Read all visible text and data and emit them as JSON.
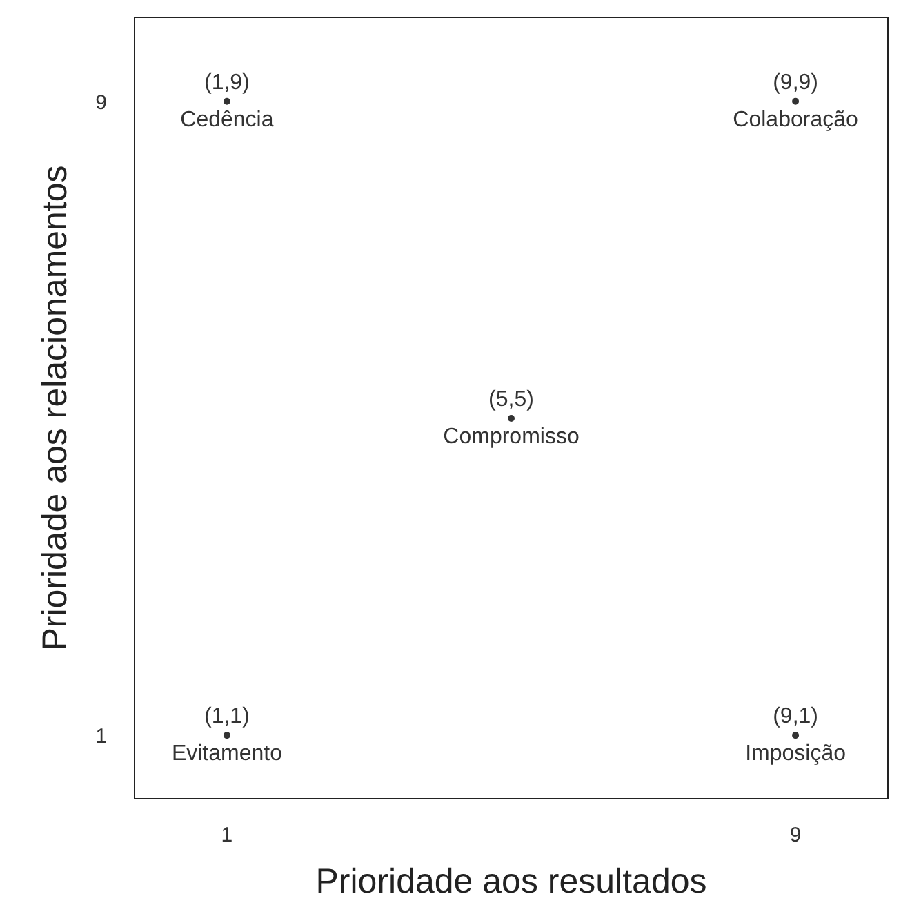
{
  "chart_data": {
    "type": "scatter",
    "xlabel": "Prioridade aos resultados",
    "ylabel": "Prioridade aos relacionamentos",
    "color": "#333333",
    "x": [
      1,
      9,
      5,
      1,
      9
    ],
    "values": [
      9,
      9,
      5,
      1,
      1
    ],
    "marker": "circle",
    "annotations": [
      "(1,9)\nCedência",
      "(9,9)\nColaboração",
      "(5,5)\nCompromisso",
      "(1,1)\nEvitamento",
      "(9,1)\nImposição"
    ],
    "xlim": [
      -0.3,
      10.3
    ],
    "ylim": [
      0.2,
      10.06
    ],
    "xticks": [
      1,
      9
    ],
    "yticks": [
      1,
      9
    ],
    "grid": false
  }
}
